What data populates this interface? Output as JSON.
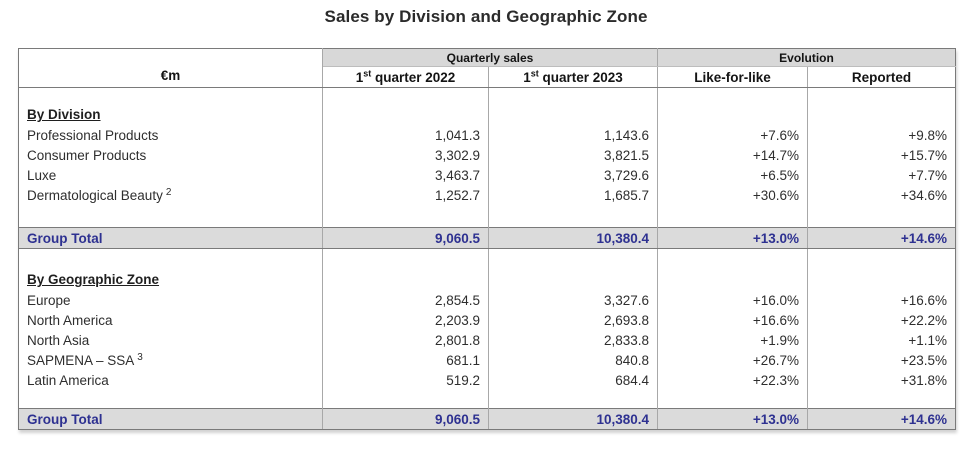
{
  "title": "Sales by Division and Geographic Zone",
  "colors": {
    "accent_blue": "#2e3191",
    "header_band_gray": "#d8d8d8",
    "total_band_gray": "#dbdbdb",
    "border_gray": "#7a7a7a"
  },
  "table": {
    "unit_label": "€m",
    "band_headers": [
      "Quarterly sales",
      "Evolution"
    ],
    "col_headers": [
      {
        "num": "1",
        "sup": "st",
        "rest": " quarter 2022"
      },
      {
        "num": "1",
        "sup": "st",
        "rest": " quarter 2023"
      },
      {
        "num": "",
        "sup": "",
        "rest": "Like-for-like"
      },
      {
        "num": "",
        "sup": "",
        "rest": "Reported"
      }
    ],
    "sections": [
      {
        "heading": "By Division",
        "rows": [
          {
            "label": "Professional Products",
            "sup": "",
            "q1_2022": "1,041.3",
            "q1_2023": "1,143.6",
            "like_for_like": "+7.6%",
            "reported": "+9.8%"
          },
          {
            "label": "Consumer Products",
            "sup": "",
            "q1_2022": "3,302.9",
            "q1_2023": "3,821.5",
            "like_for_like": "+14.7%",
            "reported": "+15.7%"
          },
          {
            "label": "Luxe",
            "sup": "",
            "q1_2022": "3,463.7",
            "q1_2023": "3,729.6",
            "like_for_like": "+6.5%",
            "reported": "+7.7%"
          },
          {
            "label": "Dermatological Beauty",
            "sup": "2",
            "q1_2022": "1,252.7",
            "q1_2023": "1,685.7",
            "like_for_like": "+30.6%",
            "reported": "+34.6%"
          }
        ],
        "total": {
          "label": "Group Total",
          "q1_2022": "9,060.5",
          "q1_2023": "10,380.4",
          "like_for_like": "+13.0%",
          "reported": "+14.6%"
        }
      },
      {
        "heading": "By Geographic Zone",
        "rows": [
          {
            "label": "Europe",
            "sup": "",
            "q1_2022": "2,854.5",
            "q1_2023": "3,327.6",
            "like_for_like": "+16.0%",
            "reported": "+16.6%"
          },
          {
            "label": "North America",
            "sup": "",
            "q1_2022": "2,203.9",
            "q1_2023": "2,693.8",
            "like_for_like": "+16.6%",
            "reported": "+22.2%"
          },
          {
            "label": "North Asia",
            "sup": "",
            "q1_2022": "2,801.8",
            "q1_2023": "2,833.8",
            "like_for_like": "+1.9%",
            "reported": "+1.1%"
          },
          {
            "label": "SAPMENA – SSA",
            "sup": "3",
            "q1_2022": "681.1",
            "q1_2023": "840.8",
            "like_for_like": "+26.7%",
            "reported": "+23.5%"
          },
          {
            "label": "Latin America",
            "sup": "",
            "q1_2022": "519.2",
            "q1_2023": "684.4",
            "like_for_like": "+22.3%",
            "reported": "+31.8%"
          }
        ],
        "total": {
          "label": "Group Total",
          "q1_2022": "9,060.5",
          "q1_2023": "10,380.4",
          "like_for_like": "+13.0%",
          "reported": "+14.6%"
        }
      }
    ]
  }
}
